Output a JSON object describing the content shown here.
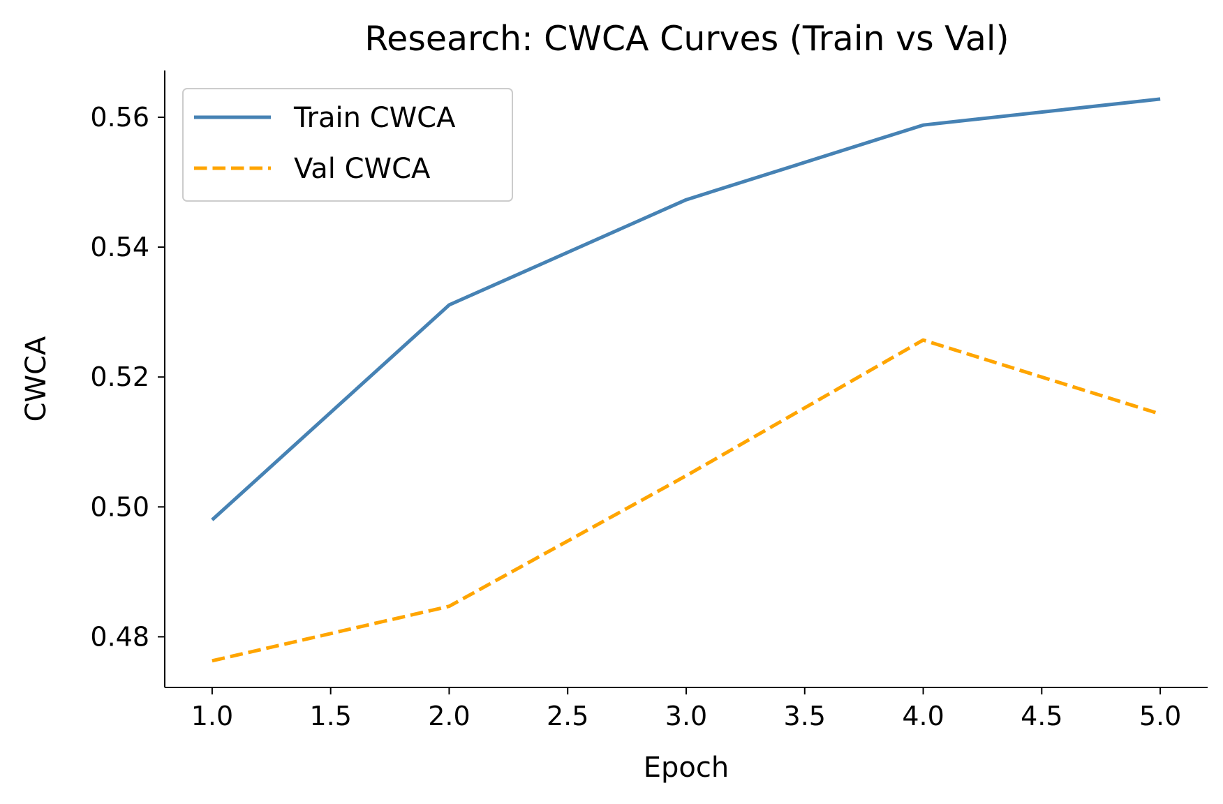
{
  "chart_data": {
    "type": "line",
    "title": "Research: CWCA Curves (Train vs Val)",
    "xlabel": "Epoch",
    "ylabel": "CWCA",
    "xlim": [
      0.8,
      5.2
    ],
    "ylim": [
      0.4722,
      0.5672
    ],
    "x_ticks": [
      1.0,
      1.5,
      2.0,
      2.5,
      3.0,
      3.5,
      4.0,
      4.5,
      5.0
    ],
    "x_tick_labels": [
      "1.0",
      "1.5",
      "2.0",
      "2.5",
      "3.0",
      "3.5",
      "4.0",
      "4.5",
      "5.0"
    ],
    "y_ticks": [
      0.48,
      0.5,
      0.52,
      0.54,
      0.56
    ],
    "y_tick_labels": [
      "0.48",
      "0.50",
      "0.52",
      "0.54",
      "0.56"
    ],
    "grid": false,
    "legend_position": "top-left",
    "series": [
      {
        "name": "Train CWCA",
        "color": "#4682B4",
        "line_style": "solid",
        "x": [
          1,
          2,
          3,
          4,
          5
        ],
        "y": [
          0.498,
          0.5311,
          0.5473,
          0.5588,
          0.5628
        ]
      },
      {
        "name": "Val CWCA",
        "color": "#FFA500",
        "line_style": "dashed",
        "x": [
          1,
          2,
          3,
          4,
          5
        ],
        "y": [
          0.4763,
          0.4847,
          0.5048,
          0.5257,
          0.5143
        ]
      }
    ]
  }
}
